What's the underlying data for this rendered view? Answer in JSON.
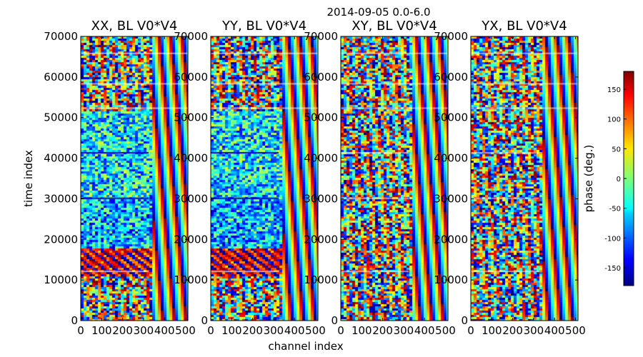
{
  "chart_data": {
    "type": "heatmap",
    "title": "2014-09-05 0.0-6.0",
    "xlabel": "channel index",
    "ylabel": "time index",
    "colorbar_label": "phase (deg.)",
    "colormap": "jet",
    "xlim": [
      0,
      512
    ],
    "ylim": [
      0,
      70000
    ],
    "xticks": [
      0,
      100,
      200,
      300,
      400,
      500
    ],
    "yticks": [
      0,
      10000,
      20000,
      30000,
      40000,
      50000,
      60000,
      70000
    ],
    "clim": [
      -180,
      180
    ],
    "cbar_ticks": [
      150,
      100,
      50,
      0,
      -50,
      -100,
      -150
    ],
    "panels": [
      {
        "title": "XX, BL V0*V4",
        "y_labels": "left"
      },
      {
        "title": "YY, BL V0*V4",
        "y_labels": "inside"
      },
      {
        "title": "XY, BL V0*V4",
        "y_labels": "inside"
      },
      {
        "title": "YX, BL V0*V4",
        "y_labels": "inside"
      }
    ]
  }
}
